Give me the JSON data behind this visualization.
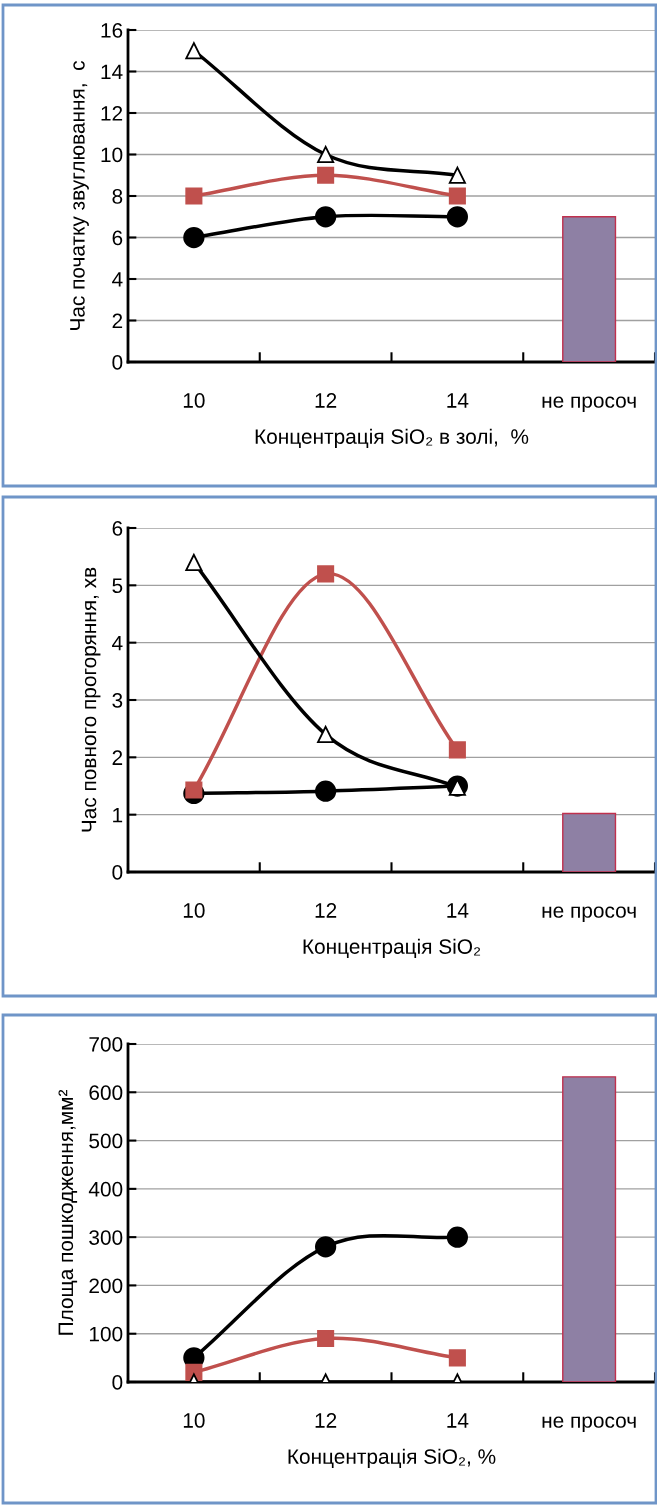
{
  "chart_data": [
    {
      "type": "line",
      "xlabel": "Концентрація SiO₂ в золі,  %",
      "ylabel": "Час початку звуглювання,  с",
      "categories": [
        "10",
        "12",
        "14",
        "не просоч"
      ],
      "ylim": [
        0,
        16
      ],
      "yticks": [
        0,
        2,
        4,
        6,
        8,
        10,
        12,
        14,
        16
      ],
      "grid": "y",
      "series": [
        {
          "marker": "circle",
          "color": "#000000",
          "values": [
            6,
            7,
            7,
            null
          ]
        },
        {
          "marker": "square",
          "color": "#c0504d",
          "values": [
            8,
            9,
            8,
            null
          ]
        },
        {
          "marker": "triangle",
          "color": "#000000",
          "values": [
            15,
            10,
            9,
            null
          ]
        },
        {
          "type": "bar",
          "color": "#8e80a4",
          "values": [
            null,
            null,
            null,
            7
          ]
        }
      ]
    },
    {
      "type": "line",
      "xlabel": "Концентрація SiO₂",
      "ylabel": "Час повного прогоряння, хв",
      "categories": [
        "10",
        "12",
        "14",
        "не просоч"
      ],
      "ylim": [
        0,
        6
      ],
      "yticks": [
        0,
        1,
        2,
        3,
        4,
        5,
        6
      ],
      "grid": "y",
      "series": [
        {
          "marker": "circle",
          "color": "#000000",
          "values": [
            1.37,
            1.41,
            1.5,
            null
          ]
        },
        {
          "marker": "square",
          "color": "#c0504d",
          "values": [
            1.43,
            5.2,
            2.13,
            null
          ]
        },
        {
          "marker": "triangle",
          "color": "#000000",
          "values": [
            5.4,
            2.4,
            1.48,
            null
          ]
        },
        {
          "type": "bar",
          "color": "#8e80a4",
          "values": [
            null,
            null,
            null,
            1.02
          ]
        }
      ]
    },
    {
      "type": "line",
      "xlabel": "Концентрація SiO₂, %",
      "ylabel": "Площа пошкодження,мм²",
      "categories": [
        "10",
        "12",
        "14",
        "не просоч"
      ],
      "ylim": [
        0,
        700
      ],
      "yticks": [
        0,
        100,
        200,
        300,
        400,
        500,
        600,
        700
      ],
      "grid": "y",
      "series": [
        {
          "marker": "circle",
          "color": "#000000",
          "values": [
            50,
            280,
            300,
            null
          ]
        },
        {
          "marker": "square",
          "color": "#c0504d",
          "values": [
            20,
            90,
            50,
            null
          ]
        },
        {
          "marker": "triangle",
          "color": "#000000",
          "values": [
            0,
            0,
            0,
            null
          ]
        },
        {
          "type": "bar",
          "color": "#8e80a4",
          "values": [
            null,
            null,
            null,
            632
          ]
        }
      ]
    }
  ]
}
